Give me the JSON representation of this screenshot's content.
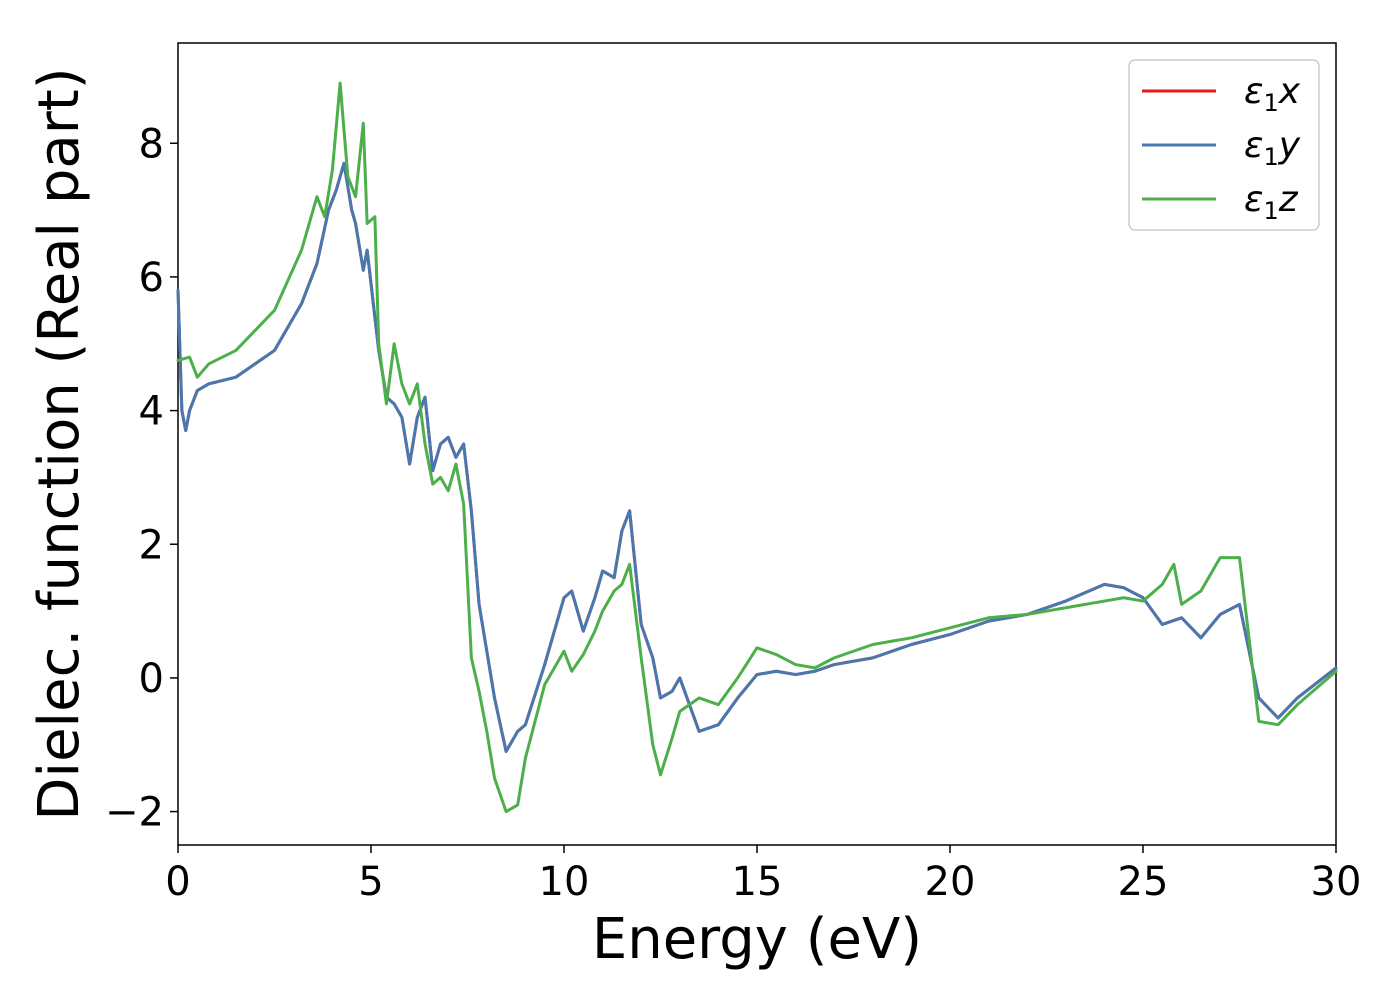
{
  "chart_data": {
    "type": "line",
    "xlabel": "Energy (eV)",
    "ylabel": "Dielec. function (Real part)",
    "xlim": [
      0,
      30
    ],
    "ylim": [
      -2.5,
      9.5
    ],
    "xticks": [
      0,
      5,
      10,
      15,
      20,
      25,
      30
    ],
    "xtick_labels": [
      "0",
      "5",
      "10",
      "15",
      "20",
      "25",
      "30"
    ],
    "yticks": [
      -2,
      0,
      2,
      4,
      6,
      8
    ],
    "ytick_labels": [
      "−2",
      "0",
      "2",
      "4",
      "6",
      "8"
    ],
    "grid": false,
    "legend_position": "top-right",
    "series": [
      {
        "name": "ε1x",
        "legend_main": "ε",
        "legend_sub": "1",
        "legend_var": "x",
        "color": "#e41a1c",
        "x": [
          0,
          0.1,
          0.2,
          0.3,
          0.5,
          0.8,
          1.5,
          2.5,
          3.2,
          3.6,
          3.9,
          4.1,
          4.3,
          4.5,
          4.6,
          4.8,
          4.9,
          5.1,
          5.2,
          5.4,
          5.6,
          5.8,
          6.0,
          6.2,
          6.4,
          6.6,
          6.8,
          7.0,
          7.2,
          7.4,
          7.6,
          7.8,
          8.0,
          8.2,
          8.5,
          8.8,
          9.0,
          9.5,
          10.0,
          10.2,
          10.5,
          10.8,
          11.0,
          11.3,
          11.5,
          11.7,
          12.0,
          12.3,
          12.5,
          12.8,
          13.0,
          13.5,
          14.0,
          14.5,
          15.0,
          15.5,
          16.0,
          16.5,
          17.0,
          18.0,
          19.0,
          20.0,
          21.0,
          22.0,
          23.0,
          24.0,
          24.5,
          25.0,
          25.5,
          26.0,
          26.5,
          27.0,
          27.5,
          28.0,
          28.5,
          29.0,
          30.0
        ],
        "y": [
          5.8,
          4.0,
          3.7,
          4.0,
          4.3,
          4.4,
          4.5,
          4.9,
          5.6,
          6.2,
          7.0,
          7.3,
          7.7,
          7.0,
          6.8,
          6.1,
          6.4,
          5.4,
          4.9,
          4.2,
          4.1,
          3.9,
          3.2,
          3.9,
          4.2,
          3.1,
          3.5,
          3.6,
          3.3,
          3.5,
          2.5,
          1.1,
          0.4,
          -0.3,
          -1.1,
          -0.8,
          -0.7,
          0.2,
          1.2,
          1.3,
          0.7,
          1.2,
          1.6,
          1.5,
          2.2,
          2.5,
          0.8,
          0.3,
          -0.3,
          -0.2,
          0.0,
          -0.8,
          -0.7,
          -0.3,
          0.05,
          0.1,
          0.05,
          0.1,
          0.2,
          0.3,
          0.5,
          0.65,
          0.85,
          0.95,
          1.15,
          1.4,
          1.35,
          1.2,
          0.8,
          0.9,
          0.6,
          0.95,
          1.1,
          -0.3,
          -0.6,
          -0.3,
          0.15
        ]
      },
      {
        "name": "ε1y",
        "legend_main": "ε",
        "legend_sub": "1",
        "legend_var": "y",
        "color": "#4878b0",
        "x": [
          0,
          0.1,
          0.2,
          0.3,
          0.5,
          0.8,
          1.5,
          2.5,
          3.2,
          3.6,
          3.9,
          4.1,
          4.3,
          4.5,
          4.6,
          4.8,
          4.9,
          5.1,
          5.2,
          5.4,
          5.6,
          5.8,
          6.0,
          6.2,
          6.4,
          6.6,
          6.8,
          7.0,
          7.2,
          7.4,
          7.6,
          7.8,
          8.0,
          8.2,
          8.5,
          8.8,
          9.0,
          9.5,
          10.0,
          10.2,
          10.5,
          10.8,
          11.0,
          11.3,
          11.5,
          11.7,
          12.0,
          12.3,
          12.5,
          12.8,
          13.0,
          13.5,
          14.0,
          14.5,
          15.0,
          15.5,
          16.0,
          16.5,
          17.0,
          18.0,
          19.0,
          20.0,
          21.0,
          22.0,
          23.0,
          24.0,
          24.5,
          25.0,
          25.5,
          26.0,
          26.5,
          27.0,
          27.5,
          28.0,
          28.5,
          29.0,
          30.0
        ],
        "y": [
          5.8,
          4.0,
          3.7,
          4.0,
          4.3,
          4.4,
          4.5,
          4.9,
          5.6,
          6.2,
          7.0,
          7.3,
          7.7,
          7.0,
          6.8,
          6.1,
          6.4,
          5.4,
          4.9,
          4.2,
          4.1,
          3.9,
          3.2,
          3.9,
          4.2,
          3.1,
          3.5,
          3.6,
          3.3,
          3.5,
          2.5,
          1.1,
          0.4,
          -0.3,
          -1.1,
          -0.8,
          -0.7,
          0.2,
          1.2,
          1.3,
          0.7,
          1.2,
          1.6,
          1.5,
          2.2,
          2.5,
          0.8,
          0.3,
          -0.3,
          -0.2,
          0.0,
          -0.8,
          -0.7,
          -0.3,
          0.05,
          0.1,
          0.05,
          0.1,
          0.2,
          0.3,
          0.5,
          0.65,
          0.85,
          0.95,
          1.15,
          1.4,
          1.35,
          1.2,
          0.8,
          0.9,
          0.6,
          0.95,
          1.1,
          -0.3,
          -0.6,
          -0.3,
          0.15
        ]
      },
      {
        "name": "ε1z",
        "legend_main": "ε",
        "legend_sub": "1",
        "legend_var": "z",
        "color": "#4daf4a",
        "x": [
          0,
          0.3,
          0.5,
          0.8,
          1.5,
          2.5,
          3.2,
          3.6,
          3.8,
          4.0,
          4.2,
          4.4,
          4.6,
          4.8,
          4.9,
          5.1,
          5.2,
          5.4,
          5.6,
          5.8,
          6.0,
          6.2,
          6.4,
          6.6,
          6.8,
          7.0,
          7.2,
          7.4,
          7.6,
          7.8,
          8.0,
          8.2,
          8.5,
          8.8,
          9.0,
          9.5,
          10.0,
          10.2,
          10.5,
          10.8,
          11.0,
          11.3,
          11.5,
          11.7,
          12.0,
          12.3,
          12.5,
          12.8,
          13.0,
          13.5,
          14.0,
          14.5,
          15.0,
          15.5,
          16.0,
          16.5,
          17.0,
          18.0,
          19.0,
          20.0,
          21.0,
          22.0,
          23.0,
          24.0,
          24.5,
          25.0,
          25.5,
          25.8,
          26.0,
          26.5,
          27.0,
          27.5,
          28.0,
          28.5,
          29.0,
          30.0
        ],
        "y": [
          4.75,
          4.8,
          4.5,
          4.7,
          4.9,
          5.5,
          6.4,
          7.2,
          6.9,
          7.6,
          8.9,
          7.5,
          7.2,
          8.3,
          6.8,
          6.9,
          5.0,
          4.1,
          5.0,
          4.4,
          4.1,
          4.4,
          3.5,
          2.9,
          3.0,
          2.8,
          3.2,
          2.6,
          0.3,
          -0.2,
          -0.8,
          -1.5,
          -2.0,
          -1.9,
          -1.2,
          -0.1,
          0.4,
          0.1,
          0.35,
          0.7,
          1.0,
          1.3,
          1.4,
          1.7,
          0.3,
          -1.0,
          -1.45,
          -0.9,
          -0.5,
          -0.3,
          -0.4,
          0.0,
          0.45,
          0.35,
          0.2,
          0.15,
          0.3,
          0.5,
          0.6,
          0.75,
          0.9,
          0.95,
          1.05,
          1.15,
          1.2,
          1.15,
          1.4,
          1.7,
          1.1,
          1.3,
          1.8,
          1.8,
          -0.65,
          -0.7,
          -0.4,
          0.1
        ]
      }
    ]
  }
}
